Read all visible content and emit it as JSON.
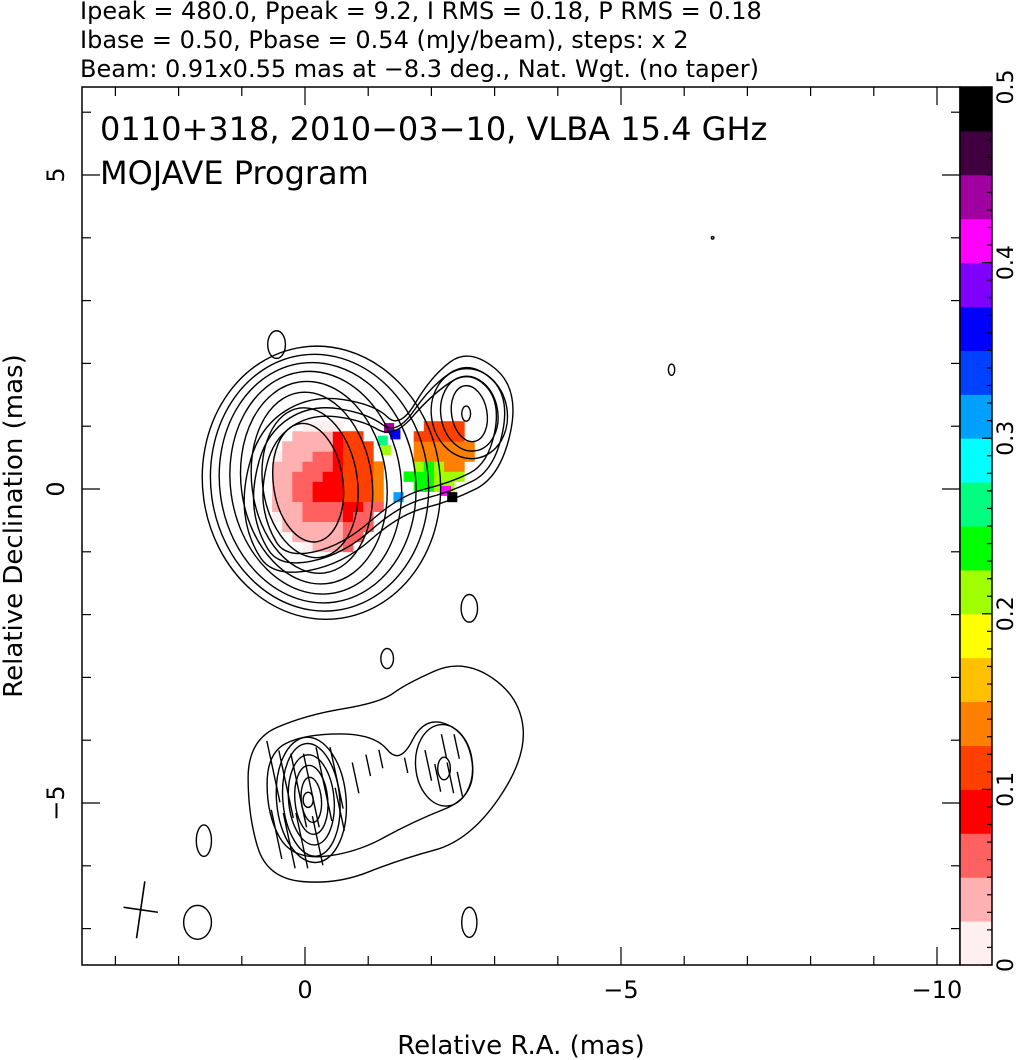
{
  "header": {
    "line1": "Ipeak = 480.0, Ppeak = 9.2, I RMS = 0.18, P RMS = 0.18",
    "line2": "Ibase = 0.50, Pbase = 0.54 (mJy/beam), steps: x 2",
    "line3": "Beam: 0.91x0.55 mas at −8.3 deg., Nat. Wgt. (no taper)"
  },
  "chart_data": {
    "type": "heatmap",
    "title": "0110+318, 2010−03−10, VLBA 15.4 GHz",
    "subtitle": "MOJAVE Program",
    "xlabel": "Relative R.A. (mas)",
    "ylabel": "Relative Declination (mas)",
    "xlim": [
      3.5,
      -10.4
    ],
    "ylim": [
      -7.6,
      6.4
    ],
    "x_ticks": [
      0,
      -5,
      -10
    ],
    "x_tick_labels": [
      "0",
      "−5",
      "−10"
    ],
    "y_ticks": [
      5,
      0,
      -5
    ],
    "y_tick_labels": [
      "5",
      "0",
      "−5"
    ],
    "colorbar": {
      "range": [
        0,
        0.5
      ],
      "ticks": [
        0,
        0.1,
        0.2,
        0.3,
        0.4,
        0.5
      ],
      "tick_labels": [
        "0",
        "0.1",
        "0.2",
        "0.3",
        "0.4",
        "0.5"
      ],
      "colors": [
        "#fff0f0",
        "#ffb0b0",
        "#ff6060",
        "#ff0000",
        "#ff4000",
        "#ff8000",
        "#ffc000",
        "#ffff00",
        "#a0ff00",
        "#00ff00",
        "#00ff80",
        "#00ffff",
        "#00a0ff",
        "#0040ff",
        "#0000ff",
        "#8000ff",
        "#ff00ff",
        "#a000a0",
        "#400040",
        "#000000"
      ]
    },
    "contour_levels_mJy_per_beam": [
      0.5,
      1,
      2,
      4,
      8,
      16,
      32,
      64,
      128,
      256
    ],
    "contour_color": "#000000",
    "features": {
      "core": {
        "x": 0.0,
        "y": 0.1,
        "peak_mJy_per_beam": 480.0
      },
      "jet_knot_east": {
        "x": -2.5,
        "y": 1.1
      },
      "southern_component": {
        "x": 0.0,
        "y": -5.0
      },
      "southern_knot": {
        "x": -2.2,
        "y": -4.5
      }
    },
    "beam": {
      "x": 2.6,
      "y": -6.7,
      "major_mas": 0.91,
      "minor_mas": 0.55,
      "pa_deg": -8.3
    }
  }
}
